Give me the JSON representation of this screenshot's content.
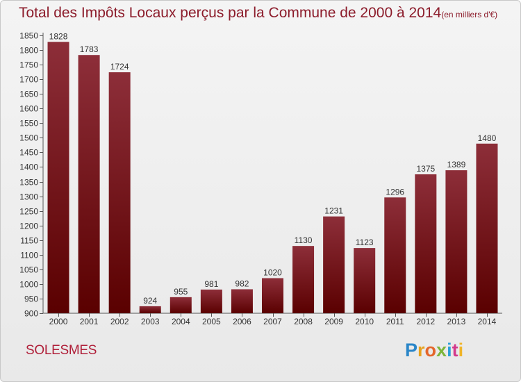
{
  "title": "Total des Impôts Locaux perçus par la Commune de 2000 à 2014",
  "title_unit": "(en milliers d'€)",
  "commune": "SOLESMES",
  "logo": {
    "letters": [
      "P",
      "r",
      "o",
      "x",
      "i",
      "t",
      "i"
    ]
  },
  "colors": {
    "bar_top": "#8d2e39",
    "bar_bottom": "#5a0000",
    "title": "#8c1c2b",
    "commune": "#b0203a"
  },
  "chart_data": {
    "type": "bar",
    "categories": [
      "2000",
      "2001",
      "2002",
      "2003",
      "2004",
      "2005",
      "2006",
      "2007",
      "2008",
      "2009",
      "2010",
      "2011",
      "2012",
      "2013",
      "2014"
    ],
    "values": [
      1828,
      1783,
      1724,
      924,
      955,
      981,
      982,
      1020,
      1130,
      1231,
      1123,
      1296,
      1375,
      1389,
      1480
    ],
    "ylim": [
      900,
      1850
    ],
    "yticks": [
      900,
      950,
      1000,
      1050,
      1100,
      1150,
      1200,
      1250,
      1300,
      1350,
      1400,
      1450,
      1500,
      1550,
      1600,
      1650,
      1700,
      1750,
      1800,
      1850
    ],
    "xlabel": "",
    "ylabel": "",
    "grid": false,
    "legend": "none"
  }
}
